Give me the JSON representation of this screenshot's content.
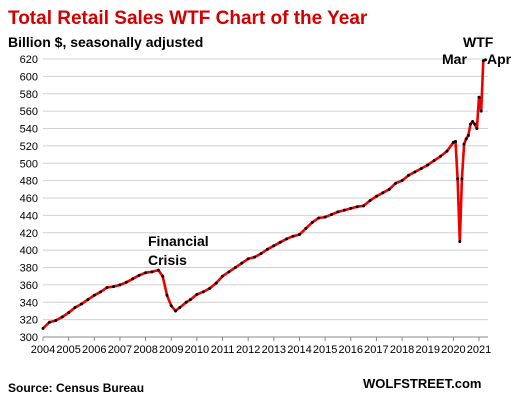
{
  "chart_data": {
    "type": "line",
    "title": "Total Retail Sales WTF Chart of the Year",
    "subtitle": "Billion $, seasonally adjusted",
    "ylim": [
      300,
      620
    ],
    "ytick_step": 20,
    "xlim": [
      2004.0,
      2021.35
    ],
    "x_ticks": [
      "2004",
      "2005",
      "2006",
      "2007",
      "2008",
      "2009",
      "2010",
      "2011",
      "2012",
      "2013",
      "2014",
      "2015",
      "2016",
      "2017",
      "2018",
      "2019",
      "2020",
      "2021"
    ],
    "grid": true,
    "line_color": "#ee0000",
    "marker_color": "#000000",
    "series": [
      {
        "x": [
          "2004-01",
          "2004-04",
          "2004-07",
          "2004-10",
          "2005-01",
          "2005-04",
          "2005-07",
          "2005-10",
          "2006-01",
          "2006-04",
          "2006-07",
          "2006-10",
          "2007-01",
          "2007-04",
          "2007-07",
          "2007-10",
          "2008-01",
          "2008-04",
          "2008-07",
          "2008-09",
          "2008-11",
          "2009-01",
          "2009-03",
          "2009-05",
          "2009-08",
          "2009-10",
          "2010-01",
          "2010-04",
          "2010-07",
          "2010-10",
          "2011-01",
          "2011-04",
          "2011-07",
          "2011-10",
          "2012-01",
          "2012-04",
          "2012-07",
          "2012-10",
          "2013-01",
          "2013-04",
          "2013-07",
          "2013-10",
          "2014-01",
          "2014-04",
          "2014-07",
          "2014-10",
          "2015-01",
          "2015-04",
          "2015-07",
          "2015-10",
          "2016-01",
          "2016-04",
          "2016-07",
          "2016-10",
          "2017-01",
          "2017-04",
          "2017-07",
          "2017-10",
          "2018-01",
          "2018-04",
          "2018-07",
          "2018-10",
          "2019-01",
          "2019-04",
          "2019-07",
          "2019-10",
          "2020-01",
          "2020-02",
          "2020-03",
          "2020-04",
          "2020-05",
          "2020-06",
          "2020-07",
          "2020-08",
          "2020-09",
          "2020-10",
          "2020-11",
          "2020-12",
          "2021-01",
          "2021-02",
          "2021-03",
          "2021-04"
        ],
        "values": [
          310,
          317,
          319,
          323,
          328,
          334,
          338,
          343,
          348,
          352,
          357,
          358,
          360,
          363,
          367,
          371,
          374,
          375,
          377,
          370,
          348,
          336,
          330,
          334,
          340,
          343,
          349,
          352,
          356,
          362,
          370,
          375,
          380,
          385,
          390,
          392,
          396,
          401,
          405,
          409,
          413,
          416,
          418,
          425,
          432,
          437,
          438,
          441,
          444,
          446,
          448,
          450,
          451,
          457,
          462,
          466,
          470,
          477,
          480,
          486,
          490,
          494,
          498,
          503,
          508,
          514,
          524,
          525,
          482,
          410,
          482,
          522,
          528,
          532,
          545,
          548,
          545,
          540,
          576,
          560,
          618,
          619
        ]
      }
    ],
    "annotations": {
      "financial_crisis_1": "Financial",
      "financial_crisis_2": "Crisis",
      "wtf": "WTF",
      "mar": "Mar",
      "apr": "Apr"
    },
    "annotation_colors": {
      "wtf": "#d40000",
      "mar": "#2e9a3a",
      "apr": "#2e9a3a"
    },
    "source": "Source: Census Bureau",
    "brand": "WOLFSTREET.com"
  }
}
